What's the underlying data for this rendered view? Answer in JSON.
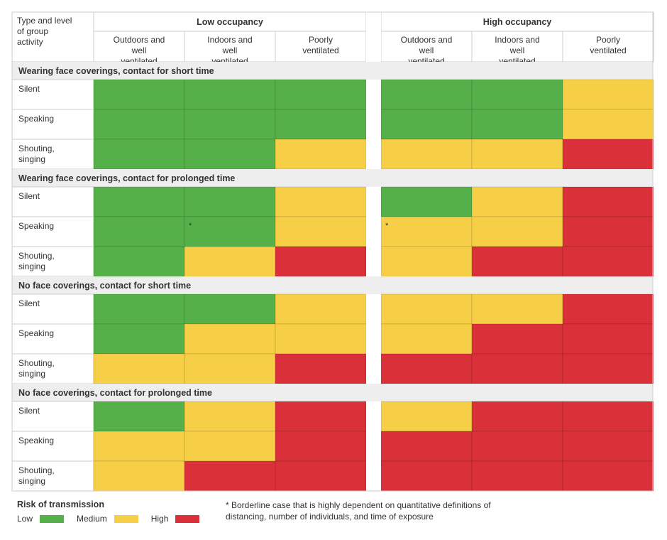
{
  "chart_data": {
    "type": "table",
    "row_header_title": "Type and level of group activity",
    "groups": [
      {
        "label": "Low occupancy",
        "columns": [
          "Outdoors and well ventilated",
          "Indoors and well ventilated",
          "Poorly ventilated"
        ]
      },
      {
        "label": "High occupancy",
        "columns": [
          "Outdoors and well ventilated",
          "Indoors and well ventilated",
          "Poorly ventilated"
        ]
      }
    ],
    "sections": [
      {
        "title": "Wearing face coverings, contact for short time",
        "rows": [
          {
            "label": "Silent",
            "values": [
              "low",
              "low",
              "low",
              "low",
              "low",
              "medium"
            ]
          },
          {
            "label": "Speaking",
            "values": [
              "low",
              "low",
              "low",
              "low",
              "low",
              "medium"
            ]
          },
          {
            "label": "Shouting, singing",
            "values": [
              "low",
              "low",
              "medium",
              "medium",
              "medium",
              "high"
            ]
          }
        ]
      },
      {
        "title": "Wearing face coverings, contact for prolonged time",
        "rows": [
          {
            "label": "Silent",
            "values": [
              "low",
              "low",
              "medium",
              "low",
              "medium",
              "high"
            ]
          },
          {
            "label": "Speaking",
            "values": [
              "low",
              "low",
              "medium",
              "medium",
              "medium",
              "high"
            ],
            "borderline": [
              1,
              3
            ]
          },
          {
            "label": "Shouting, singing",
            "values": [
              "low",
              "medium",
              "high",
              "medium",
              "high",
              "high"
            ]
          }
        ]
      },
      {
        "title": "No face coverings, contact for short time",
        "rows": [
          {
            "label": "Silent",
            "values": [
              "low",
              "low",
              "medium",
              "medium",
              "medium",
              "high"
            ]
          },
          {
            "label": "Speaking",
            "values": [
              "low",
              "medium",
              "medium",
              "medium",
              "high",
              "high"
            ]
          },
          {
            "label": "Shouting, singing",
            "values": [
              "medium",
              "medium",
              "high",
              "high",
              "high",
              "high"
            ]
          }
        ]
      },
      {
        "title": "No face coverings, contact for prolonged time",
        "rows": [
          {
            "label": "Silent",
            "values": [
              "low",
              "medium",
              "high",
              "medium",
              "high",
              "high"
            ]
          },
          {
            "label": "Speaking",
            "values": [
              "medium",
              "medium",
              "high",
              "high",
              "high",
              "high"
            ]
          },
          {
            "label": "Shouting, singing",
            "values": [
              "medium",
              "high",
              "high",
              "high",
              "high",
              "high"
            ]
          }
        ]
      }
    ],
    "borderline_marker": "*",
    "legend": {
      "title": "Risk of transmission",
      "items": [
        {
          "key": "low",
          "label": "Low"
        },
        {
          "key": "medium",
          "label": "Medium"
        },
        {
          "key": "high",
          "label": "High"
        }
      ]
    },
    "footnote": "* Borderline case that is highly dependent on quantitative definitions of distancing, number of individuals, and time of exposure",
    "colors": {
      "low": "#55b049",
      "medium": "#f7cf46",
      "high": "#d9303a",
      "section_bg": "#eeeeee",
      "border": "#cccccc"
    }
  }
}
